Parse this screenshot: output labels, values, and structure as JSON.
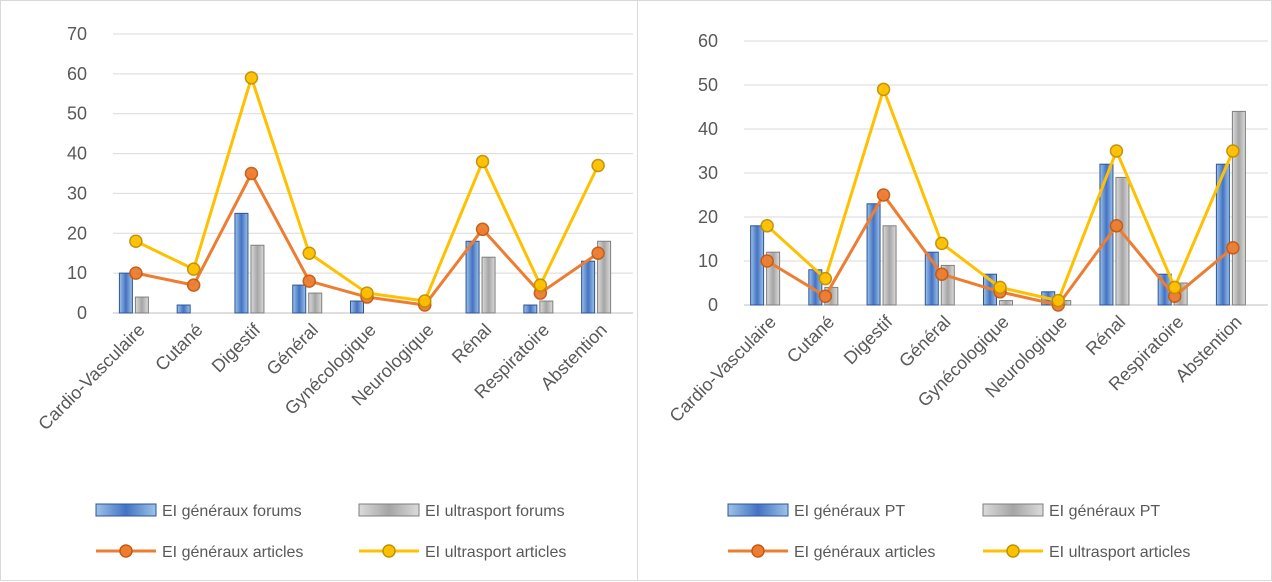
{
  "chart_data": [
    {
      "type": "bar",
      "categories": [
        "Cardio-Vasculaire",
        "Cutané",
        "Digestif",
        "Général",
        "Gynécologique",
        "Neurologique",
        "Rénal",
        "Respiratoire",
        "Abstention"
      ],
      "ylim": [
        0,
        70
      ],
      "yticks": [
        0,
        10,
        20,
        30,
        40,
        50,
        60,
        70
      ],
      "grid": true,
      "legend_position": "bottom",
      "bar_series": [
        {
          "name": "EI généraux forums",
          "color": "#4472c4",
          "values": [
            10,
            2,
            25,
            7,
            3,
            0,
            18,
            2,
            13
          ]
        },
        {
          "name": "EI ultrasport forums",
          "color": "#a5a5a5",
          "values": [
            4,
            0,
            17,
            5,
            0,
            0,
            14,
            3,
            18
          ]
        }
      ],
      "line_series": [
        {
          "name": "EI généraux articles",
          "color": "#ed7d31",
          "values": [
            10,
            7,
            35,
            8,
            4,
            2,
            21,
            5,
            15
          ]
        },
        {
          "name": "EI ultrasport articles",
          "color": "#ffc000",
          "values": [
            18,
            11,
            59,
            15,
            5,
            3,
            38,
            7,
            37
          ]
        }
      ]
    },
    {
      "type": "bar",
      "categories": [
        "Cardio-Vasculaire",
        "Cutané",
        "Digestif",
        "Général",
        "Gynécologique",
        "Neurologique",
        "Rénal",
        "Respiratoire",
        "Abstention"
      ],
      "ylim": [
        0,
        60
      ],
      "yticks": [
        0,
        10,
        20,
        30,
        40,
        50,
        60
      ],
      "grid": true,
      "legend_position": "bottom",
      "bar_series": [
        {
          "name": "EI généraux PT",
          "color": "#4472c4",
          "values": [
            18,
            8,
            23,
            12,
            7,
            3,
            32,
            7,
            32
          ]
        },
        {
          "name": "EI généraux PT",
          "color": "#a5a5a5",
          "values": [
            12,
            4,
            18,
            9,
            1,
            1,
            29,
            5,
            44
          ]
        }
      ],
      "line_series": [
        {
          "name": "EI généraux articles",
          "color": "#ed7d31",
          "values": [
            10,
            2,
            25,
            7,
            3,
            0,
            18,
            2,
            13
          ]
        },
        {
          "name": "EI ultrasport articles",
          "color": "#ffc000",
          "values": [
            18,
            6,
            49,
            14,
            4,
            1,
            35,
            4,
            35
          ]
        }
      ]
    }
  ]
}
